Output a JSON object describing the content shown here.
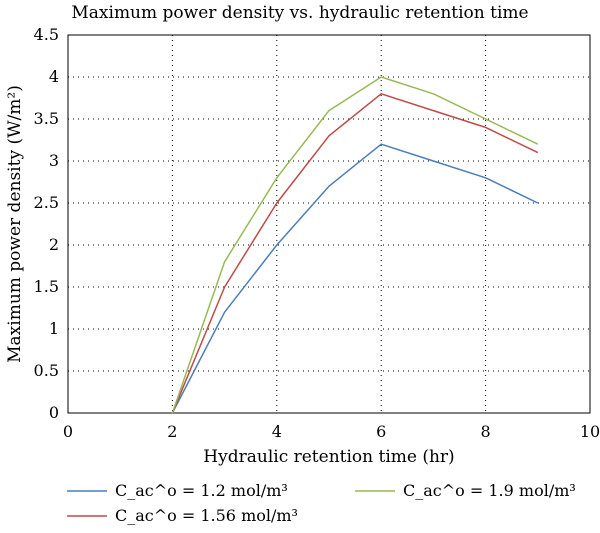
{
  "chart_data": {
    "type": "line",
    "title": "Maximum power density vs. hydraulic retention time",
    "xlabel": "Hydraulic retention time (hr)",
    "ylabel": "Maximum power density (W/m²)",
    "xlim": [
      0,
      10
    ],
    "ylim": [
      0,
      4.5
    ],
    "xticks": [
      0,
      2,
      4,
      6,
      8,
      10
    ],
    "yticks": [
      0,
      0.5,
      1,
      1.5,
      2,
      2.5,
      3,
      3.5,
      4,
      4.5
    ],
    "xtick_labels": [
      "0",
      "2",
      "4",
      "6",
      "8",
      "10"
    ],
    "ytick_labels": [
      "0",
      "0.5",
      "1",
      "1.5",
      "2",
      "2.5",
      "3",
      "3.5",
      "4",
      "4.5"
    ],
    "grid": true,
    "legend_position": "bottom",
    "x": [
      2,
      3,
      4,
      5,
      6,
      7,
      8,
      9
    ],
    "series": [
      {
        "name": "C_ac^o = 1.2 mol/m³",
        "color": "#4a7ebb",
        "values": [
          0,
          1.2,
          2.0,
          2.7,
          3.2,
          3.0,
          2.8,
          2.5
        ]
      },
      {
        "name": "C_ac^o = 1.56 mol/m³",
        "color": "#be4b48",
        "values": [
          0,
          1.5,
          2.5,
          3.3,
          3.8,
          3.6,
          3.4,
          3.1
        ]
      },
      {
        "name": "C_ac^o = 1.9 mol/m³",
        "color": "#98b954",
        "values": [
          0,
          1.8,
          2.8,
          3.6,
          4.0,
          3.8,
          3.5,
          3.2
        ]
      }
    ]
  }
}
